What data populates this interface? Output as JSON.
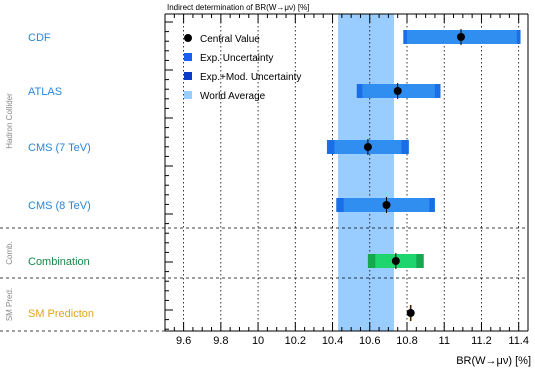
{
  "chart_data": {
    "type": "scatter",
    "title": "Indirect determination of BR(W→μν) [%]",
    "xlabel": "BR(W→μν) [%]",
    "xlim": [
      9.5,
      11.45
    ],
    "xticks": [
      "9.6",
      "9.8",
      "10",
      "10.2",
      "10.4",
      "10.6",
      "10.8",
      "11",
      "11.2",
      "11.4"
    ],
    "grid": "vertical dotted",
    "legend": {
      "placement": "top-left",
      "entries": [
        {
          "label": "Central Value",
          "color": "#000000",
          "marker": "circle"
        },
        {
          "label": "Exp. Uncertainty",
          "color": "#1a5ff0",
          "marker": "square"
        },
        {
          "label": "Exp.+Mod. Uncertainty",
          "color": "#0a3cc8",
          "marker": "square"
        },
        {
          "label": "World Average",
          "color": "#99ccff",
          "marker": "square"
        }
      ]
    },
    "world_average": {
      "low": 10.43,
      "high": 10.73,
      "color": "#99ccff"
    },
    "groups": [
      {
        "label": "Hadron Collider",
        "rows": [
          0,
          1,
          2,
          3
        ]
      },
      {
        "label": "Comb.",
        "rows": [
          4
        ]
      },
      {
        "label": "SM Pred.",
        "rows": [
          5
        ]
      }
    ],
    "measurements": [
      {
        "label": "CDF",
        "value": 11.09,
        "exp_low": 10.8,
        "exp_high": 11.39,
        "tot_low": 10.78,
        "tot_high": 11.41,
        "label_color": "#2b86d8",
        "exp_color": "#2f8ef0",
        "tot_color": "#1a6fe6"
      },
      {
        "label": "ATLAS",
        "value": 10.75,
        "exp_low": 10.56,
        "exp_high": 10.95,
        "tot_low": 10.53,
        "tot_high": 10.98,
        "label_color": "#2b86d8",
        "exp_color": "#2f8ef0",
        "tot_color": "#1a6fe6"
      },
      {
        "label": "CMS (7 TeV)",
        "value": 10.59,
        "exp_low": 10.41,
        "exp_high": 10.77,
        "tot_low": 10.37,
        "tot_high": 10.81,
        "label_color": "#2b86d8",
        "exp_color": "#2f8ef0",
        "tot_color": "#1a6fe6"
      },
      {
        "label": "CMS (8 TeV)",
        "value": 10.69,
        "exp_low": 10.46,
        "exp_high": 10.92,
        "tot_low": 10.42,
        "tot_high": 10.95,
        "label_color": "#2b86d8",
        "exp_color": "#2f8ef0",
        "tot_color": "#1a6fe6"
      },
      {
        "label": "Combination",
        "value": 10.74,
        "exp_low": 10.63,
        "exp_high": 10.85,
        "tot_low": 10.59,
        "tot_high": 10.89,
        "label_color": "#178a4a",
        "exp_color": "#1fd56e",
        "tot_color": "#15a84f"
      },
      {
        "label": "SM Predicton",
        "value": 10.82,
        "exp_low": 10.81,
        "exp_high": 10.83,
        "tot_low": 10.81,
        "tot_high": 10.83,
        "label_color": "#e0a51a",
        "exp_color": "#e0a51a",
        "tot_color": "#e0a51a"
      }
    ]
  }
}
